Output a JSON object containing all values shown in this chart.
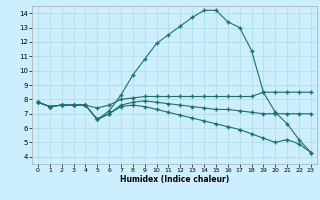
{
  "xlabel": "Humidex (Indice chaleur)",
  "bg_color": "#cceeff",
  "grid_color": "#aadddd",
  "line_color": "#1a7070",
  "xlim": [
    -0.5,
    23.5
  ],
  "ylim": [
    3.5,
    14.5
  ],
  "xticks": [
    0,
    1,
    2,
    3,
    4,
    5,
    6,
    7,
    8,
    9,
    10,
    11,
    12,
    13,
    14,
    15,
    16,
    17,
    18,
    19,
    20,
    21,
    22,
    23
  ],
  "yticks": [
    4,
    5,
    6,
    7,
    8,
    9,
    10,
    11,
    12,
    13,
    14
  ],
  "curve1_x": [
    0,
    1,
    2,
    3,
    4,
    5,
    6,
    7,
    8,
    9,
    10,
    11,
    12,
    13,
    14,
    15,
    16,
    17,
    18,
    19,
    20,
    21,
    22,
    23
  ],
  "curve1_y": [
    7.8,
    7.5,
    7.6,
    7.6,
    7.6,
    6.6,
    7.2,
    8.3,
    9.7,
    10.8,
    11.9,
    12.5,
    13.1,
    13.7,
    14.2,
    14.2,
    13.4,
    13.0,
    11.4,
    8.5,
    7.1,
    6.3,
    5.2,
    4.3
  ],
  "curve2_x": [
    0,
    1,
    2,
    3,
    4,
    5,
    6,
    7,
    8,
    9,
    10,
    11,
    12,
    13,
    14,
    15,
    16,
    17,
    18,
    19,
    20,
    21,
    22,
    23
  ],
  "curve2_y": [
    7.8,
    7.5,
    7.6,
    7.6,
    7.6,
    7.4,
    7.6,
    8.0,
    8.1,
    8.2,
    8.2,
    8.2,
    8.2,
    8.2,
    8.2,
    8.2,
    8.2,
    8.2,
    8.2,
    8.5,
    8.5,
    8.5,
    8.5,
    8.5
  ],
  "curve3_x": [
    0,
    1,
    2,
    3,
    4,
    5,
    6,
    7,
    8,
    9,
    10,
    11,
    12,
    13,
    14,
    15,
    16,
    17,
    18,
    19,
    20,
    21,
    22,
    23
  ],
  "curve3_y": [
    7.8,
    7.5,
    7.6,
    7.6,
    7.6,
    6.6,
    7.0,
    7.6,
    7.8,
    7.9,
    7.8,
    7.7,
    7.6,
    7.5,
    7.4,
    7.3,
    7.3,
    7.2,
    7.1,
    7.0,
    7.0,
    7.0,
    7.0,
    7.0
  ],
  "curve4_x": [
    0,
    1,
    2,
    3,
    4,
    5,
    6,
    7,
    8,
    9,
    10,
    11,
    12,
    13,
    14,
    15,
    16,
    17,
    18,
    19,
    20,
    21,
    22,
    23
  ],
  "curve4_y": [
    7.8,
    7.5,
    7.6,
    7.6,
    7.6,
    6.6,
    7.0,
    7.5,
    7.6,
    7.5,
    7.3,
    7.1,
    6.9,
    6.7,
    6.5,
    6.3,
    6.1,
    5.9,
    5.6,
    5.3,
    5.0,
    5.2,
    4.9,
    4.3
  ]
}
